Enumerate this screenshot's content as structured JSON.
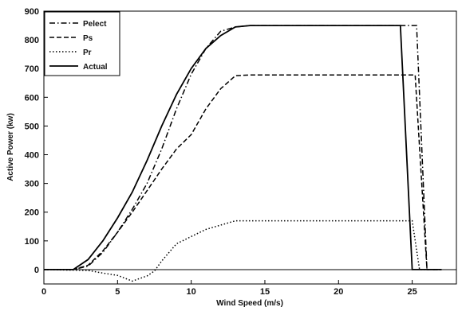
{
  "chart_data": {
    "type": "line",
    "title": "",
    "xlabel": "Wind Speed (m/s)",
    "ylabel": "Active Power (kw)",
    "xlim": [
      0,
      28
    ],
    "ylim": [
      -50,
      900
    ],
    "x_ticks": [
      0,
      5,
      10,
      15,
      20,
      25
    ],
    "y_ticks": [
      0,
      100,
      200,
      300,
      400,
      500,
      600,
      700,
      800,
      900
    ],
    "grid": false,
    "legend_placement": "top-left",
    "series": [
      {
        "name": "Pelect",
        "style": "dashdot",
        "points": [
          [
            0,
            0
          ],
          [
            2,
            0
          ],
          [
            3,
            12
          ],
          [
            4,
            60
          ],
          [
            5,
            130
          ],
          [
            6,
            210
          ],
          [
            7,
            300
          ],
          [
            8,
            420
          ],
          [
            9,
            560
          ],
          [
            10,
            680
          ],
          [
            11,
            770
          ],
          [
            12,
            830
          ],
          [
            13,
            845
          ],
          [
            14,
            850
          ],
          [
            20,
            850
          ],
          [
            25,
            850
          ],
          [
            25.3,
            850
          ],
          [
            26,
            0
          ],
          [
            27,
            0
          ]
        ]
      },
      {
        "name": "Ps",
        "style": "dashed",
        "points": [
          [
            0,
            0
          ],
          [
            2,
            0
          ],
          [
            3,
            15
          ],
          [
            4,
            65
          ],
          [
            5,
            130
          ],
          [
            6,
            200
          ],
          [
            7,
            275
          ],
          [
            8,
            350
          ],
          [
            9,
            420
          ],
          [
            10,
            470
          ],
          [
            11,
            560
          ],
          [
            12,
            630
          ],
          [
            13,
            675
          ],
          [
            14,
            678
          ],
          [
            20,
            678
          ],
          [
            25,
            678
          ],
          [
            25.2,
            678
          ],
          [
            26,
            0
          ],
          [
            27,
            0
          ]
        ]
      },
      {
        "name": "Pr",
        "style": "dotted",
        "points": [
          [
            0,
            0
          ],
          [
            3,
            -3
          ],
          [
            4,
            -12
          ],
          [
            5,
            -20
          ],
          [
            6,
            -40
          ],
          [
            7,
            -22
          ],
          [
            7.5,
            -5
          ],
          [
            8,
            30
          ],
          [
            8.5,
            60
          ],
          [
            9,
            90
          ],
          [
            10,
            115
          ],
          [
            11,
            140
          ],
          [
            12,
            155
          ],
          [
            13,
            170
          ],
          [
            14,
            170
          ],
          [
            20,
            170
          ],
          [
            25,
            170
          ],
          [
            25.5,
            0
          ],
          [
            27,
            0
          ]
        ]
      },
      {
        "name": "Actual",
        "style": "solid",
        "points": [
          [
            0,
            0
          ],
          [
            2,
            0
          ],
          [
            3,
            35
          ],
          [
            4,
            100
          ],
          [
            5,
            180
          ],
          [
            6,
            270
          ],
          [
            7,
            380
          ],
          [
            8,
            500
          ],
          [
            9,
            610
          ],
          [
            10,
            700
          ],
          [
            11,
            770
          ],
          [
            12,
            815
          ],
          [
            13,
            845
          ],
          [
            14,
            850
          ],
          [
            20,
            850
          ],
          [
            24.2,
            850
          ],
          [
            25,
            0
          ],
          [
            27,
            0
          ]
        ]
      }
    ]
  }
}
